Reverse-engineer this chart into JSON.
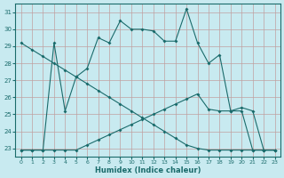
{
  "xlabel": "Humidex (Indice chaleur)",
  "ylabel": "",
  "background_color": "#c8eaf0",
  "grid_color": "#c0a0a0",
  "line_color": "#1a6b6b",
  "xlim": [
    -0.5,
    23.5
  ],
  "ylim": [
    22.5,
    31.5
  ],
  "xticks": [
    0,
    1,
    2,
    3,
    4,
    5,
    6,
    7,
    8,
    9,
    10,
    11,
    12,
    13,
    14,
    15,
    16,
    17,
    18,
    19,
    20,
    21,
    22,
    23
  ],
  "yticks": [
    23,
    24,
    25,
    26,
    27,
    28,
    29,
    30,
    31
  ],
  "line1_x": [
    0,
    1,
    2,
    3,
    4,
    5,
    6,
    7,
    8,
    9,
    10,
    11,
    12,
    13,
    14,
    15,
    16,
    17,
    18,
    19,
    20,
    21,
    22,
    23
  ],
  "line1_y": [
    22.9,
    22.9,
    22.9,
    29.2,
    25.2,
    27.2,
    27.7,
    29.5,
    29.2,
    30.5,
    30.0,
    30.0,
    29.9,
    29.3,
    29.3,
    31.2,
    29.2,
    28.0,
    28.5,
    25.2,
    25.4,
    25.2,
    22.9,
    22.9
  ],
  "line2_x": [
    0,
    1,
    2,
    3,
    4,
    5,
    6,
    7,
    8,
    9,
    10,
    11,
    12,
    13,
    14,
    15,
    16,
    17,
    18,
    19,
    20,
    21,
    22,
    23
  ],
  "line2_y": [
    29.2,
    28.8,
    28.4,
    28.0,
    27.6,
    27.2,
    26.8,
    26.4,
    26.0,
    25.6,
    25.2,
    24.8,
    24.4,
    24.0,
    23.6,
    23.2,
    23.0,
    22.9,
    22.9,
    22.9,
    22.9,
    22.9,
    22.9,
    22.9
  ],
  "line3_x": [
    0,
    1,
    2,
    3,
    4,
    5,
    6,
    7,
    8,
    9,
    10,
    11,
    12,
    13,
    14,
    15,
    16,
    17,
    18,
    19,
    20,
    21,
    22,
    23
  ],
  "line3_y": [
    22.9,
    22.9,
    22.9,
    22.9,
    22.9,
    22.9,
    23.2,
    23.5,
    23.8,
    24.1,
    24.4,
    24.7,
    25.0,
    25.3,
    25.6,
    25.9,
    26.2,
    25.3,
    25.2,
    25.2,
    25.2,
    22.9,
    22.9,
    22.9
  ]
}
